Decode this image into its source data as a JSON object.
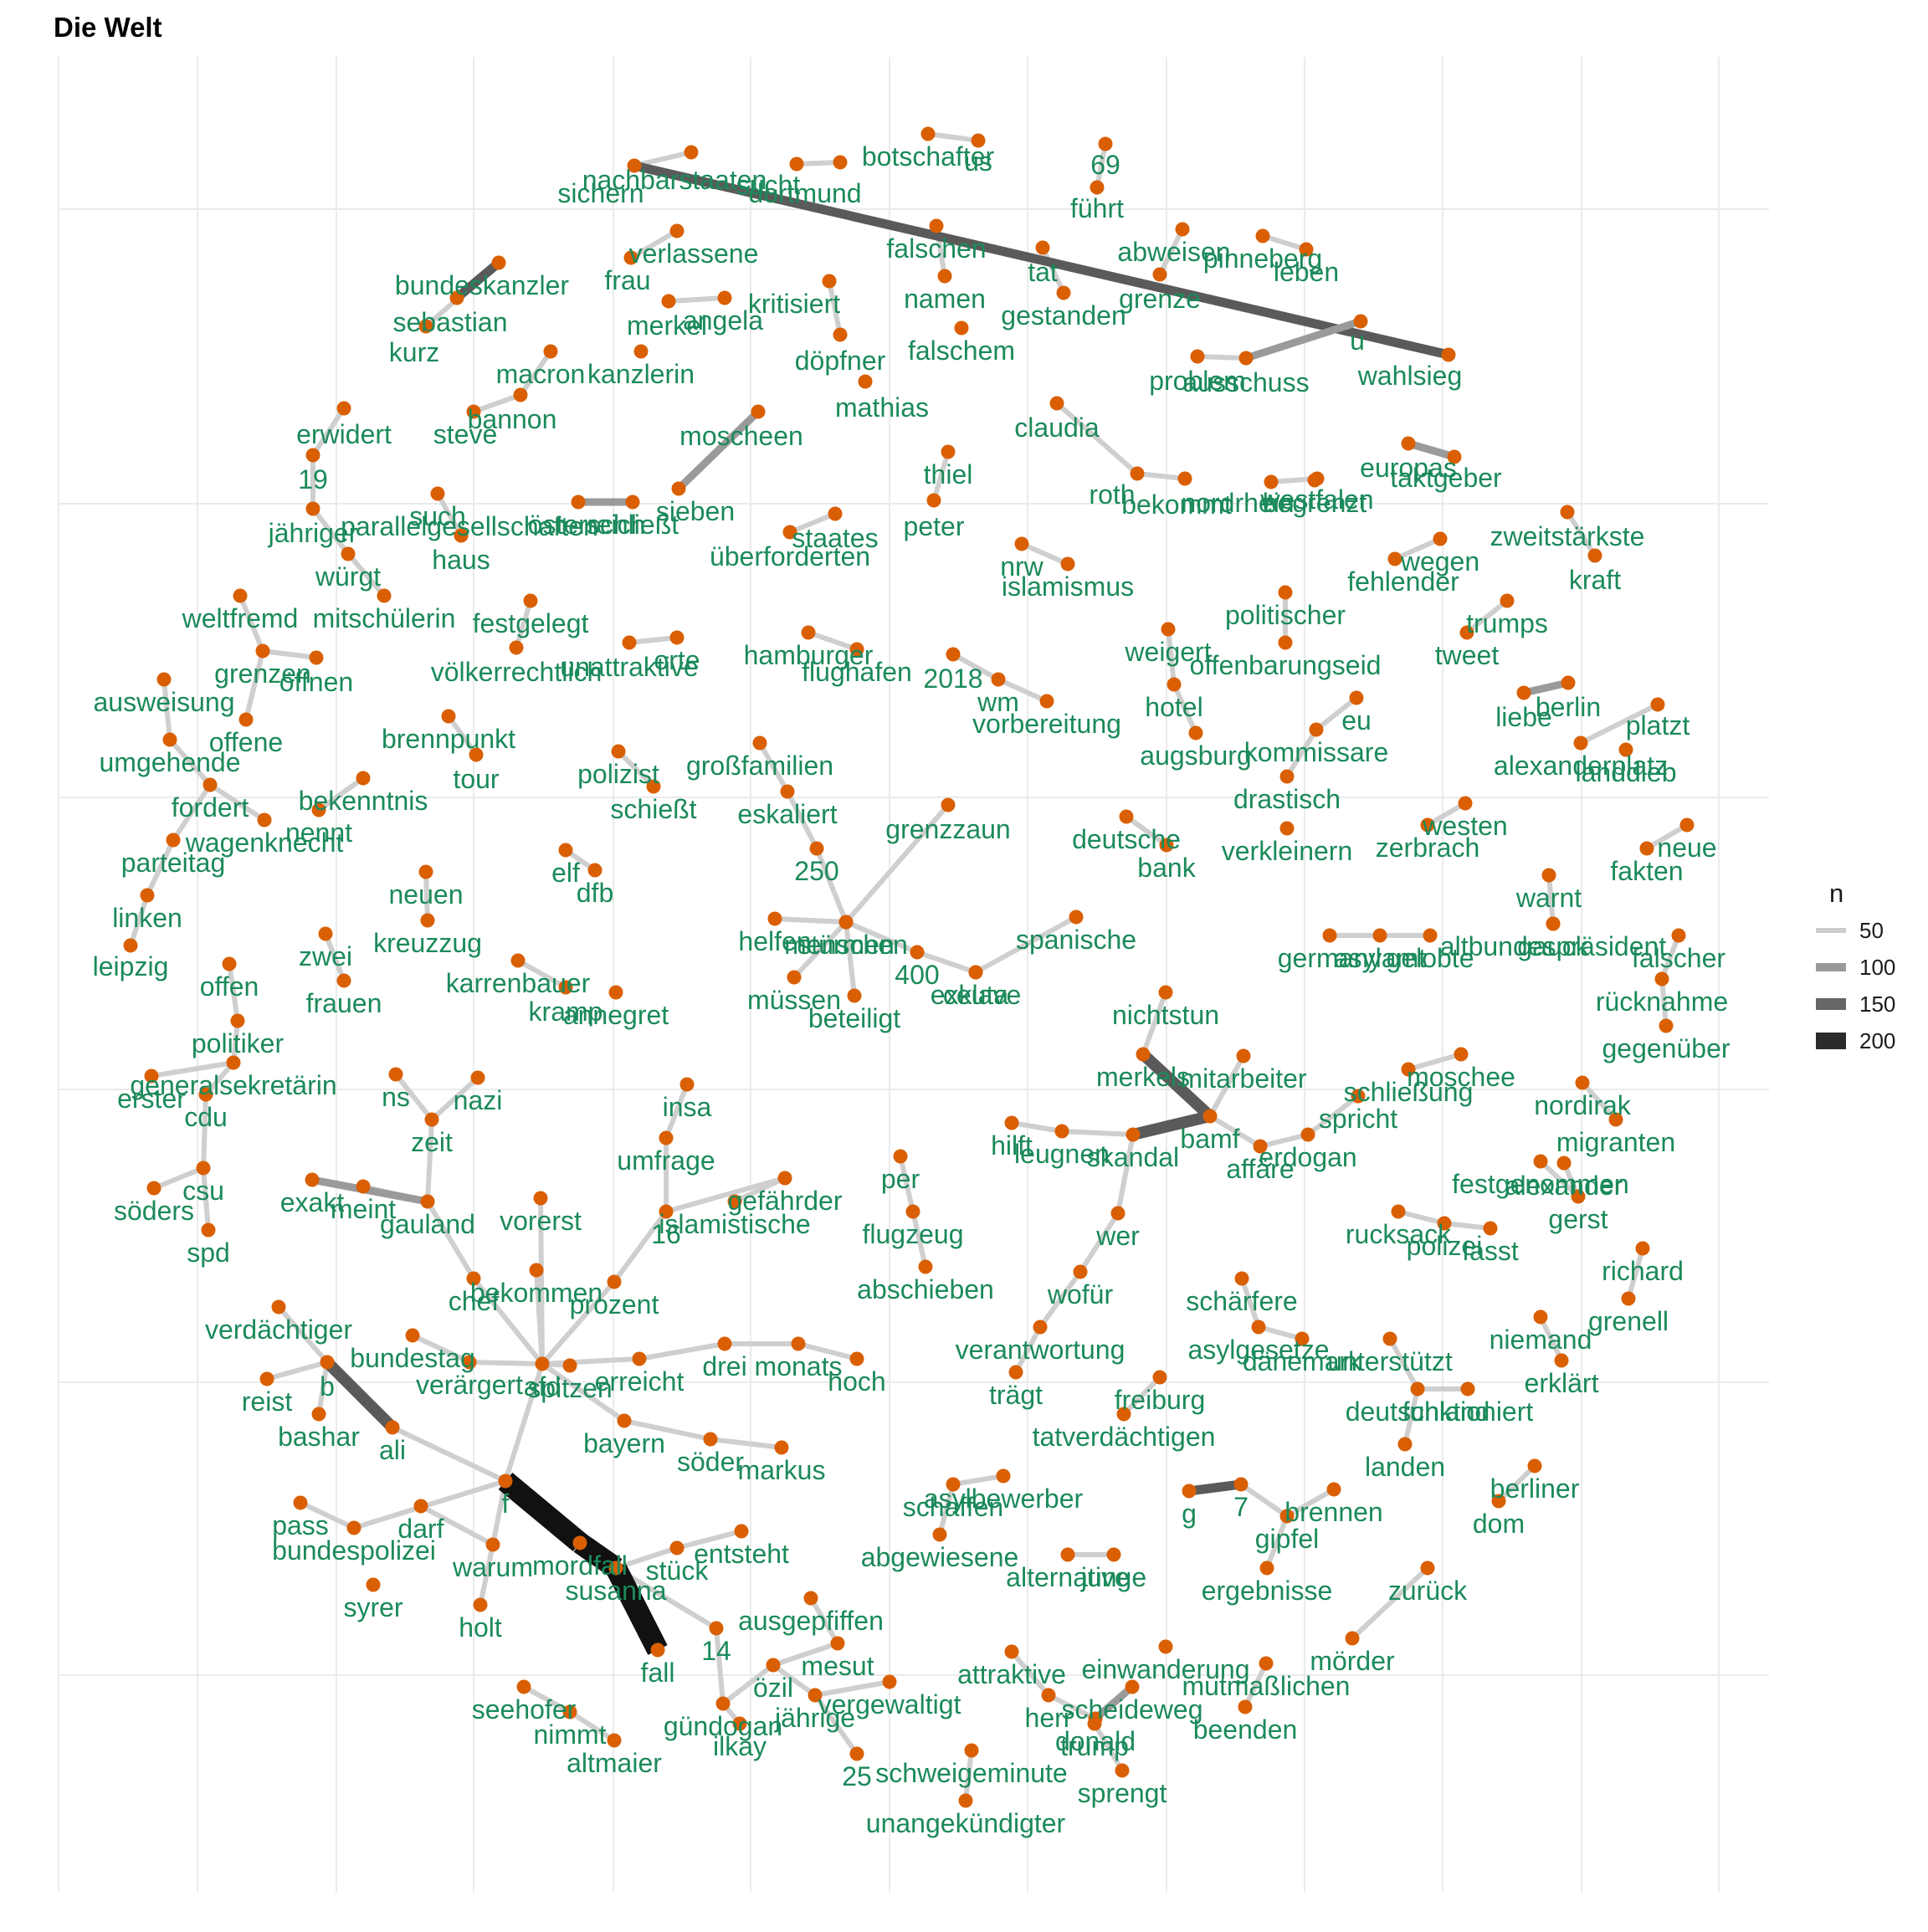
{
  "title": "Die Welt",
  "colors": {
    "node": "#d95f02",
    "label": "#1b8a5a",
    "grid": "#ebebeb",
    "edge_light": "#cfcfcf",
    "edge_mid": "#9a9a9a",
    "edge_dark": "#5a5a5a",
    "edge_black": "#111111"
  },
  "legend": {
    "title": "n",
    "items": [
      {
        "label": "50",
        "color": "#cccccc"
      },
      {
        "label": "100",
        "color": "#999999"
      },
      {
        "label": "150",
        "color": "#666666"
      },
      {
        "label": "200",
        "color": "#2b2b2b"
      }
    ]
  },
  "chart_data": {
    "type": "network",
    "weight_legend": [
      50,
      100,
      150,
      200
    ],
    "nodes": [
      "nachbarstaaten",
      "sichern",
      "sucht",
      "dortmund",
      "botschafter",
      "us",
      "69",
      "führt",
      "verlassene",
      "frau",
      "merkel",
      "angela",
      "kritisiert",
      "döpfner",
      "mathias",
      "falschen",
      "namen",
      "falschem",
      "tat",
      "gestanden",
      "abweisen",
      "grenze",
      "pinneberg",
      "leben",
      "u",
      "problem",
      "ausschuss",
      "wahlsieg",
      "bundeskanzler",
      "sebastian",
      "kurz",
      "macron",
      "bannon",
      "steve",
      "kanzlerin",
      "moscheen",
      "sieben",
      "schließt",
      "österreich",
      "thiel",
      "peter",
      "claudia",
      "roth",
      "bekommt",
      "nordrhein",
      "westfalen",
      "begrenzt",
      "europas",
      "taktgeber",
      "erwidert",
      "19",
      "jähriger",
      "würgt",
      "mitschülerin",
      "such",
      "parallelgesellschaften",
      "haus",
      "staates",
      "überforderten",
      "nrw",
      "islamismus",
      "zweitstärkste",
      "kraft",
      "fehlender",
      "wegen",
      "trumps",
      "tweet",
      "politischer",
      "offenbarungseid",
      "weltfremd",
      "festgelegt",
      "völkerrechtlich",
      "unattraktive",
      "orte",
      "hamburger",
      "flughafen",
      "2018",
      "wm",
      "vorbereitung",
      "weigert",
      "hotel",
      "augsburg",
      "grenzen",
      "öffnen",
      "offene",
      "ausweisung",
      "umgehende",
      "fordert",
      "wagenknecht",
      "parteitag",
      "linken",
      "leipzig",
      "brennpunkt",
      "tour",
      "bekenntnis",
      "nennt",
      "polizist",
      "schießt",
      "großfamilien",
      "eskaliert",
      "250",
      "stürmen",
      "grenzzaun",
      "menschen",
      "helfen",
      "müssen",
      "beteiligt",
      "400",
      "ceuta",
      "exklave",
      "spanische",
      "eu",
      "kommissare",
      "drastisch",
      "verkleinern",
      "westen",
      "zerbrach",
      "liebe",
      "berlin",
      "platzt",
      "alexanderplatz",
      "landdieb",
      "neue",
      "fakten",
      "warnt",
      "gauck",
      "altbundespräsident",
      "falscher",
      "rücknahme",
      "gegenüber",
      "neuen",
      "kreuzzug",
      "elf",
      "dfb",
      "zwei",
      "frauen",
      "karrenbauer",
      "kramp",
      "annegret",
      "deutsche",
      "bank",
      "germany",
      "asylamt",
      "gelobte",
      "nichtstun",
      "merkels",
      "mitarbeiter",
      "schließung",
      "moschee",
      "offen",
      "politiker",
      "generalsekretärin",
      "erster",
      "cdu",
      "csu",
      "söders",
      "spd",
      "ns",
      "nazi",
      "zeit",
      "insa",
      "umfrage",
      "gefährder",
      "islamistische",
      "16",
      "per",
      "flugzeug",
      "abschieben",
      "bamf",
      "hilft",
      "leugnen",
      "skandal",
      "affäre",
      "erdogan",
      "spricht",
      "nordirak",
      "migranten",
      "festgenommen",
      "exakt",
      "meint",
      "gauland",
      "vorerst",
      "chef",
      "bekommen",
      "prozent",
      "wer",
      "wofür",
      "verantwortung",
      "trägt",
      "alexander",
      "gerst",
      "rucksack",
      "polizei",
      "fasst",
      "richard",
      "grenell",
      "niemand",
      "erklärt",
      "verdächtiger",
      "b",
      "reist",
      "bashar",
      "ali",
      "bundestag",
      "verärgert",
      "spitzen",
      "afd",
      "erreicht",
      "drei",
      "monats",
      "hoch",
      "bayern",
      "söder",
      "markus",
      "schärfere",
      "asylgesetze",
      "dänemark",
      "freiburg",
      "tatverdächtigen",
      "unterstützt",
      "deutschland",
      "funktioniert",
      "landen",
      "berliner",
      "dom",
      "asylbewerber",
      "schaffen",
      "abgewiesene",
      "alternative",
      "junge",
      "g",
      "7",
      "gipfel",
      "brennen",
      "ergebnisse",
      "pass",
      "bundespolizei",
      "darf",
      "syrer",
      "warum",
      "holt",
      "f",
      "mordfall",
      "susanna",
      "stück",
      "entsteht",
      "14",
      "fall",
      "ausgepfiffen",
      "mesut",
      "özil",
      "jährige",
      "vergewaltigt",
      "gündogan",
      "ilkay",
      "25",
      "schweigeminute",
      "unangekündigter",
      "attraktive",
      "herr",
      "scheideweg",
      "donald",
      "trump",
      "sprengt",
      "mutmaßlichen",
      "beenden",
      "einwanderung",
      "zurück",
      "mörder",
      "seehofer",
      "nimmt",
      "altmaier"
    ],
    "edges": [
      [
        "f",
        "mordfall",
        230
      ],
      [
        "mordfall",
        "susanna",
        220
      ],
      [
        "susanna",
        "fall",
        200
      ],
      [
        "b",
        "ali",
        150
      ],
      [
        "merkels",
        "bamf",
        150
      ],
      [
        "bamf",
        "skandal",
        150
      ],
      [
        "wahlsieg",
        "sichern",
        140
      ],
      [
        "bundeskanzler",
        "sebastian",
        120
      ],
      [
        "sieben",
        "moscheen",
        80
      ],
      [
        "g",
        "7",
        100
      ],
      [
        "scheideweg",
        "donald",
        90
      ],
      [
        "exakt",
        "gauland",
        90
      ],
      [
        "liebe",
        "berlin",
        90
      ],
      [
        "u",
        "ausschuss",
        80
      ],
      [
        "europas",
        "taktgeber",
        80
      ],
      [
        "schließt",
        "österreich",
        90
      ]
    ]
  }
}
